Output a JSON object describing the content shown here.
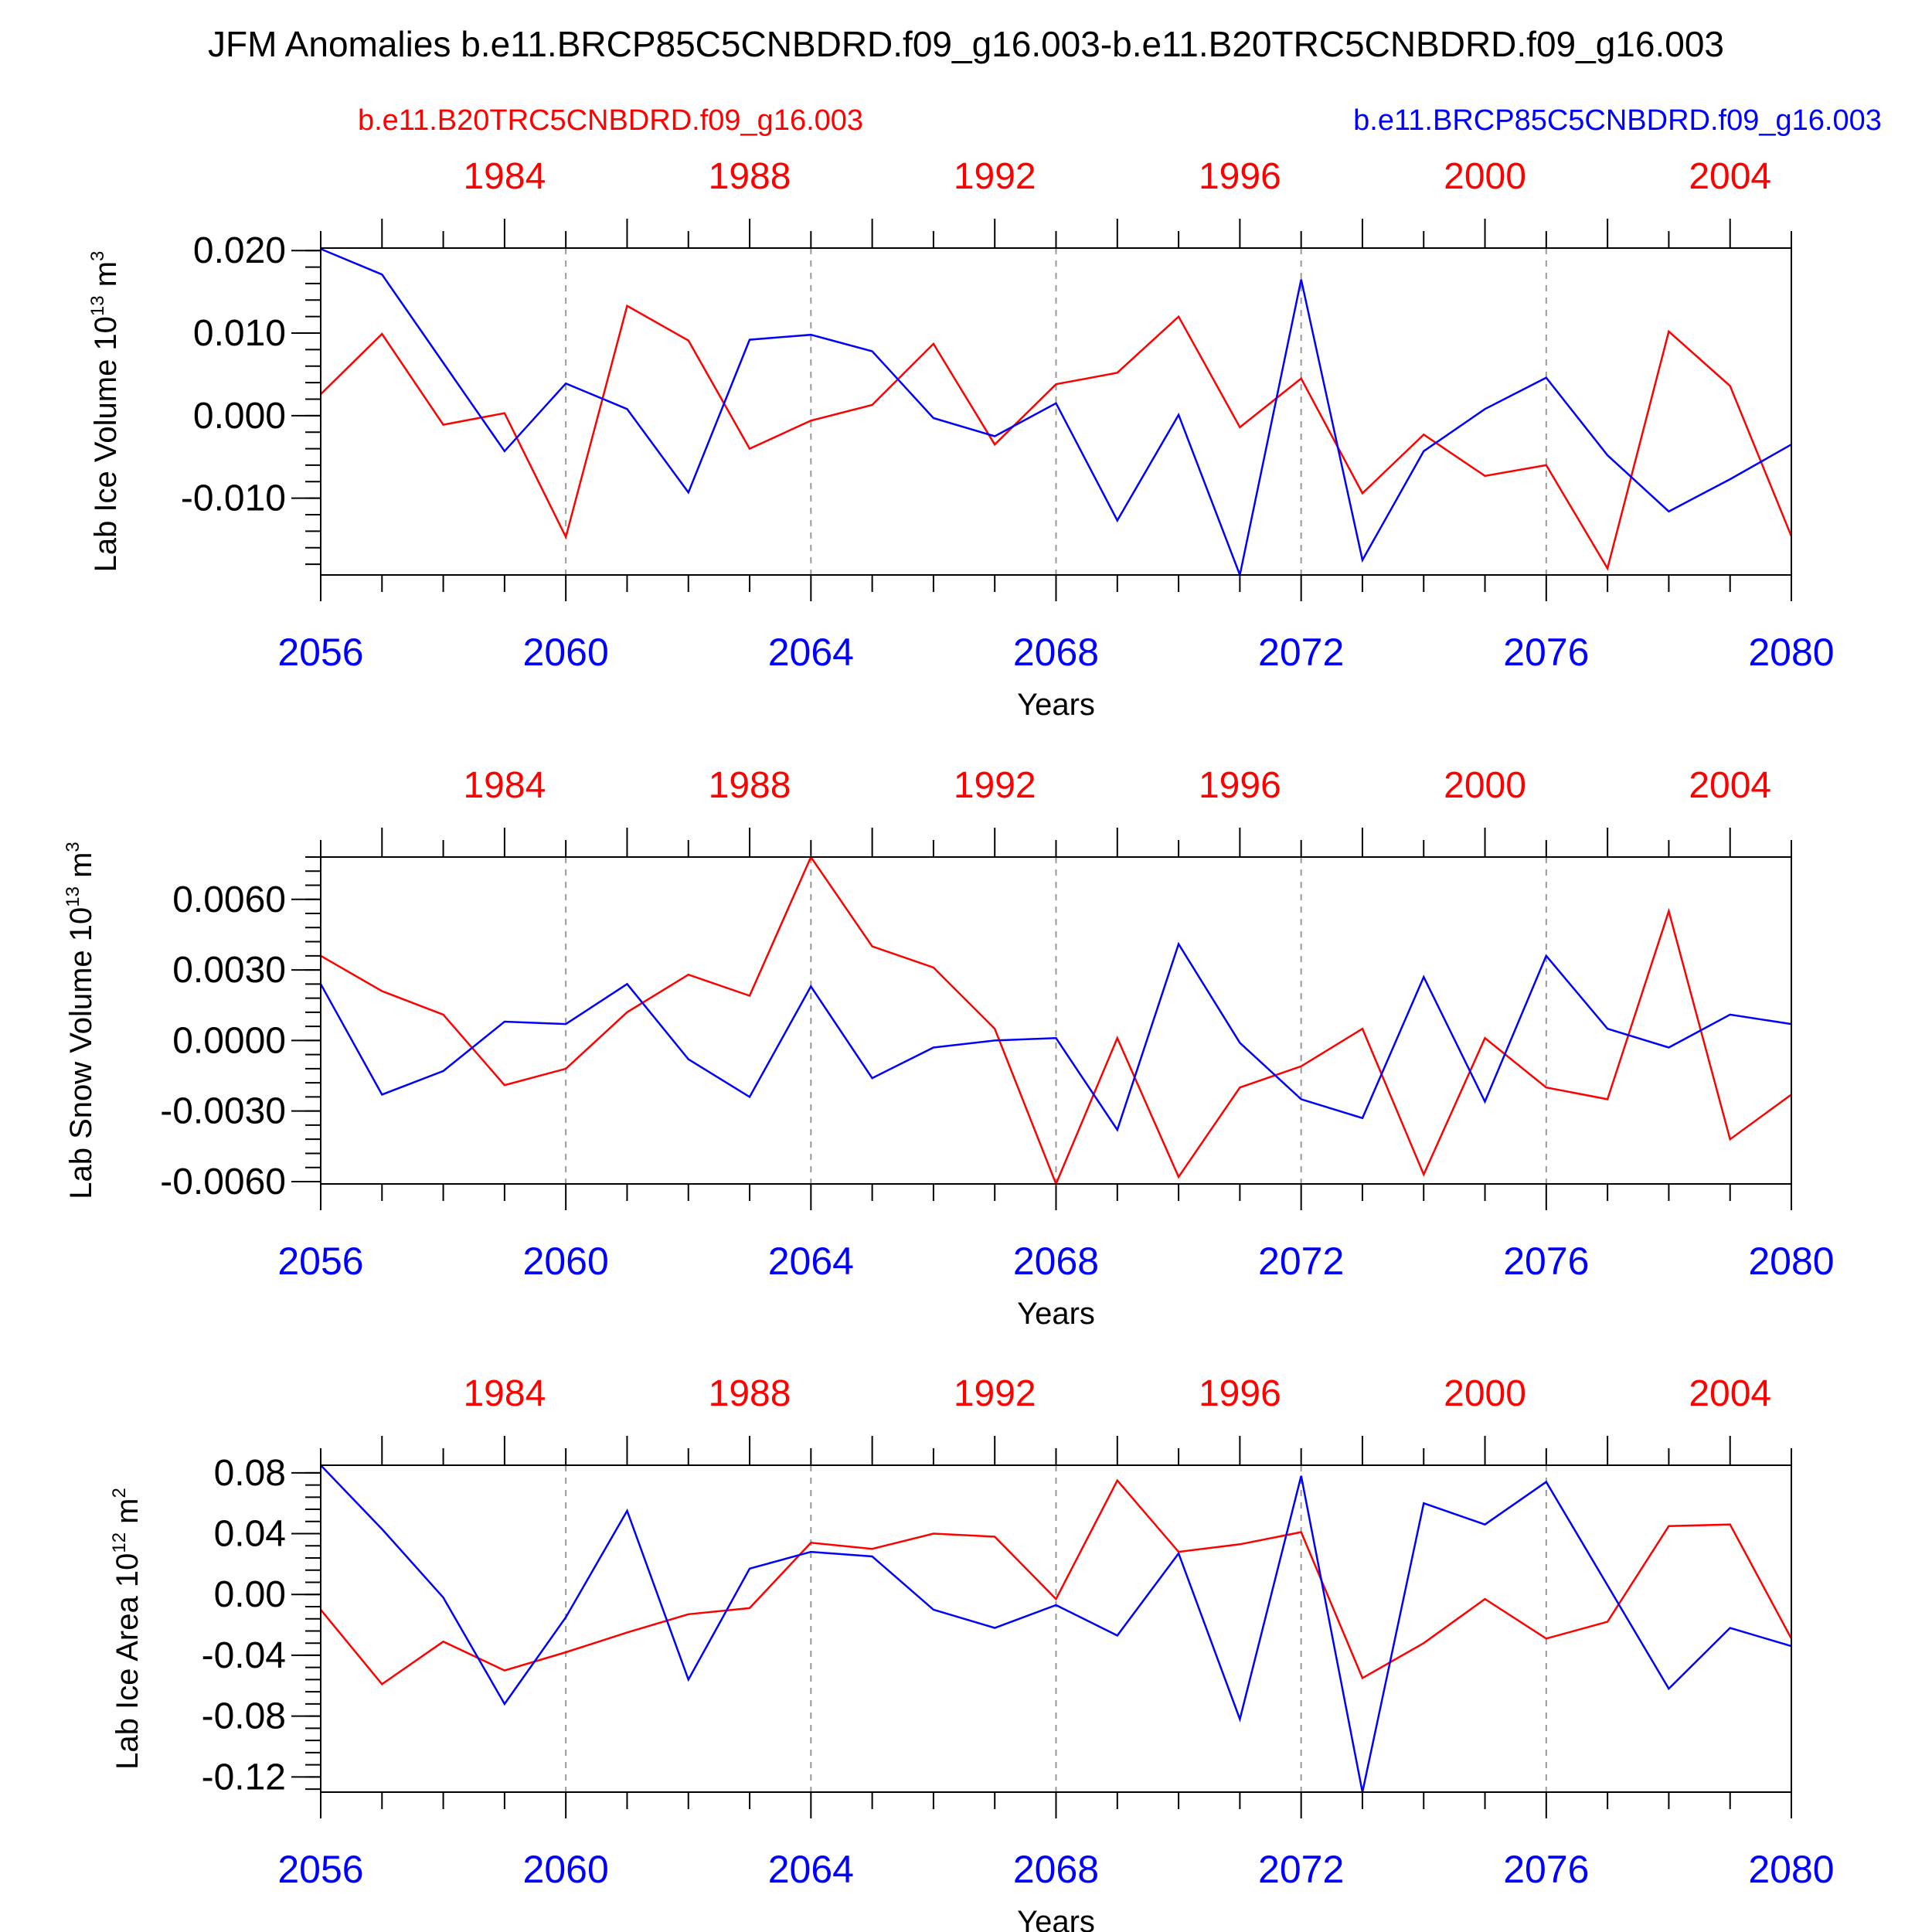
{
  "title": "JFM Anomalies b.e11.BRCP85C5CNBDRD.f09_g16.003-b.e11.B20TRC5CNBDRD.f09_g16.003",
  "legend": {
    "left": "b.e11.B20TRC5CNBDRD.f09_g16.003",
    "right": "b.e11.BRCP85C5CNBDRD.f09_g16.003"
  },
  "colors": {
    "red": "#ff0000",
    "blue": "#0000ff",
    "axis": "#000000",
    "grid": "#999999"
  },
  "chart_data": [
    {
      "type": "line",
      "ylabel": "Lab Ice Volume 10",
      "ylabel_exp": "13",
      "ylabel_unit": " m",
      "ylabel_unit_exp": "3",
      "xlabel": "Years",
      "xlim": [
        2056,
        2080
      ],
      "ylim": [
        -0.0193,
        0.0203
      ],
      "y_major_ticks": [
        0.02,
        0.01,
        0.0,
        -0.01
      ],
      "y_tick_labels": [
        "0.020",
        "0.010",
        "0.000",
        "-0.010"
      ],
      "y_minor_step": 0.002,
      "x_ticks": [
        2056,
        2060,
        2064,
        2068,
        2072,
        2076,
        2080
      ],
      "x_tick_labels": [
        "2056",
        "2060",
        "2064",
        "2068",
        "2072",
        "2076",
        "2080"
      ],
      "top_ticks": [
        1984,
        1988,
        1992,
        1996,
        2000,
        2004
      ],
      "top_tick_labels": [
        "1984",
        "1988",
        "1992",
        "1996",
        "2000",
        "2004"
      ],
      "grid_x": [
        2060,
        2064,
        2068,
        2072,
        2076
      ],
      "series": [
        {
          "name": "b.e11.B20TRC5CNBDRD.f09_g16.003",
          "color": "red",
          "values": [
            0.0026,
            0.0099,
            -0.0011,
            0.0003,
            -0.0147,
            0.0133,
            0.0091,
            -0.004,
            -0.0006,
            0.0013,
            0.0087,
            -0.0035,
            0.0038,
            0.0052,
            0.012,
            -0.0014,
            0.0045,
            -0.0094,
            -0.0023,
            -0.0073,
            -0.006,
            -0.0185,
            0.0102,
            0.0036,
            -0.0146
          ]
        },
        {
          "name": "b.e11.BRCP85C5CNBDRD.f09_g16.003",
          "color": "blue",
          "values": [
            0.0202,
            0.0171,
            0.0064,
            -0.0043,
            0.0039,
            0.0008,
            -0.0093,
            0.0092,
            0.0098,
            0.0078,
            -0.0003,
            -0.0025,
            0.0015,
            -0.0127,
            0.0001,
            -0.0193,
            0.0165,
            -0.0175,
            -0.0043,
            0.0008,
            0.0046,
            -0.0048,
            -0.0116,
            -0.0077,
            -0.0035
          ]
        }
      ]
    },
    {
      "type": "line",
      "ylabel": "Lab Snow Volume 10",
      "ylabel_exp": "13",
      "ylabel_unit": " m",
      "ylabel_unit_exp": "3",
      "xlabel": "Years",
      "xlim": [
        2056,
        2080
      ],
      "ylim": [
        -0.0061,
        0.0078
      ],
      "y_major_ticks": [
        0.006,
        0.003,
        0.0,
        -0.003,
        -0.006
      ],
      "y_tick_labels": [
        "0.0060",
        "0.0030",
        "0.0000",
        "-0.0030",
        "-0.0060"
      ],
      "y_minor_step": 0.0006,
      "x_ticks": [
        2056,
        2060,
        2064,
        2068,
        2072,
        2076,
        2080
      ],
      "x_tick_labels": [
        "2056",
        "2060",
        "2064",
        "2068",
        "2072",
        "2076",
        "2080"
      ],
      "top_ticks": [
        1984,
        1988,
        1992,
        1996,
        2000,
        2004
      ],
      "top_tick_labels": [
        "1984",
        "1988",
        "1992",
        "1996",
        "2000",
        "2004"
      ],
      "grid_x": [
        2060,
        2064,
        2068,
        2072,
        2076
      ],
      "series": [
        {
          "name": "b.e11.B20TRC5CNBDRD.f09_g16.003",
          "color": "red",
          "values": [
            0.0036,
            0.0021,
            0.0011,
            -0.0019,
            -0.0012,
            0.0012,
            0.0028,
            0.0019,
            0.0078,
            0.004,
            0.0031,
            0.0005,
            -0.0061,
            0.0001,
            -0.0058,
            -0.002,
            -0.0011,
            0.0005,
            -0.0057,
            0.0001,
            -0.002,
            -0.0025,
            0.0055,
            -0.0042,
            -0.0023
          ]
        },
        {
          "name": "b.e11.BRCP85C5CNBDRD.f09_g16.003",
          "color": "blue",
          "values": [
            0.0024,
            -0.0023,
            -0.0013,
            0.0008,
            0.0007,
            0.0024,
            -0.0008,
            -0.0024,
            0.0023,
            -0.0016,
            -0.0003,
            0.0,
            0.0001,
            -0.0038,
            0.0041,
            -0.0001,
            -0.0025,
            -0.0033,
            0.0027,
            -0.0026,
            0.0036,
            0.0005,
            -0.0003,
            0.0011,
            0.0007
          ]
        }
      ]
    },
    {
      "type": "line",
      "ylabel": "Lab Ice Area 10",
      "ylabel_exp": "12",
      "ylabel_unit": " m",
      "ylabel_unit_exp": "2",
      "xlabel": "Years",
      "xlim": [
        2056,
        2080
      ],
      "ylim": [
        -0.13,
        0.085
      ],
      "y_major_ticks": [
        0.08,
        0.04,
        0.0,
        -0.04,
        -0.08,
        -0.12
      ],
      "y_tick_labels": [
        "0.08",
        "0.04",
        "0.00",
        "-0.04",
        "-0.08",
        "-0.12"
      ],
      "y_minor_step": 0.008,
      "x_ticks": [
        2056,
        2060,
        2064,
        2068,
        2072,
        2076,
        2080
      ],
      "x_tick_labels": [
        "2056",
        "2060",
        "2064",
        "2068",
        "2072",
        "2076",
        "2080"
      ],
      "top_ticks": [
        1984,
        1988,
        1992,
        1996,
        2000,
        2004
      ],
      "top_tick_labels": [
        "1984",
        "1988",
        "1992",
        "1996",
        "2000",
        "2004"
      ],
      "grid_x": [
        2060,
        2064,
        2068,
        2072,
        2076
      ],
      "series": [
        {
          "name": "b.e11.B20TRC5CNBDRD.f09_g16.003",
          "color": "red",
          "values": [
            -0.01,
            -0.059,
            -0.031,
            -0.05,
            -0.038,
            -0.025,
            -0.013,
            -0.009,
            0.034,
            0.03,
            0.04,
            0.038,
            -0.003,
            0.075,
            0.028,
            0.033,
            0.041,
            -0.055,
            -0.032,
            -0.003,
            -0.029,
            -0.018,
            0.045,
            0.046,
            -0.029
          ]
        },
        {
          "name": "b.e11.BRCP85C5CNBDRD.f09_g16.003",
          "color": "blue",
          "values": [
            0.085,
            0.043,
            -0.002,
            -0.072,
            -0.015,
            0.055,
            -0.056,
            0.017,
            0.028,
            0.025,
            -0.01,
            -0.022,
            -0.007,
            -0.027,
            0.027,
            -0.082,
            0.078,
            -0.13,
            0.06,
            0.046,
            0.074,
            0.006,
            -0.062,
            -0.022,
            -0.034
          ]
        }
      ]
    }
  ]
}
